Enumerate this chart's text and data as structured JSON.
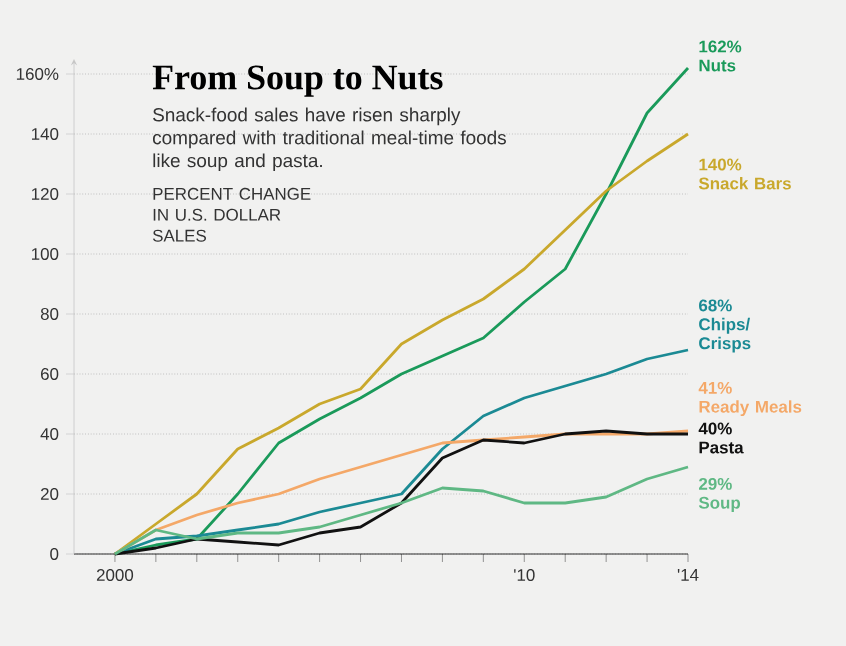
{
  "chart_data": {
    "type": "line",
    "title": "From Soup to Nuts",
    "subtitle": "Snack-food sales have risen sharply compared with traditional meal-time foods like soup and pasta.",
    "ylabel": "PERCENT CHANGE IN U.S. DOLLAR SALES",
    "x": [
      2000,
      2001,
      2002,
      2003,
      2004,
      2005,
      2006,
      2007,
      2008,
      2009,
      2010,
      2011,
      2012,
      2013,
      2014
    ],
    "xlim": [
      1999,
      2014
    ],
    "ylim": [
      0,
      165
    ],
    "xticks": [
      {
        "value": 2000,
        "label": "2000"
      },
      {
        "value": 2001,
        "label": null
      },
      {
        "value": 2002,
        "label": null
      },
      {
        "value": 2003,
        "label": null
      },
      {
        "value": 2004,
        "label": null
      },
      {
        "value": 2005,
        "label": null
      },
      {
        "value": 2006,
        "label": null
      },
      {
        "value": 2007,
        "label": null
      },
      {
        "value": 2008,
        "label": null
      },
      {
        "value": 2009,
        "label": null
      },
      {
        "value": 2010,
        "label": "'10"
      },
      {
        "value": 2011,
        "label": null
      },
      {
        "value": 2012,
        "label": null
      },
      {
        "value": 2013,
        "label": null
      },
      {
        "value": 2014,
        "label": "'14"
      }
    ],
    "yticks": [
      0,
      20,
      40,
      60,
      80,
      100,
      120,
      140,
      {
        "value": 160,
        "label": "160%"
      }
    ],
    "grid": "y",
    "series": [
      {
        "name": "Nuts",
        "color": "#1a9a5a",
        "values": [
          0,
          3,
          5,
          20,
          37,
          45,
          52,
          60,
          66,
          72,
          84,
          95,
          120,
          147,
          162
        ],
        "value_labels": [
          null,
          null,
          null,
          null,
          null,
          null,
          null,
          null,
          null,
          null,
          null,
          null,
          null,
          null,
          "162%"
        ]
      },
      {
        "name": "Snack Bars",
        "color": "#c9a82c",
        "values": [
          0,
          10,
          20,
          35,
          42,
          50,
          55,
          70,
          78,
          85,
          95,
          108,
          121,
          131,
          140
        ],
        "value_labels": [
          null,
          null,
          null,
          null,
          null,
          null,
          null,
          null,
          null,
          null,
          null,
          null,
          null,
          null,
          "140%"
        ]
      },
      {
        "name": "Chips/ Crisps",
        "color": "#1b8a94",
        "values": [
          0,
          5,
          6,
          8,
          10,
          14,
          17,
          20,
          35,
          46,
          52,
          56,
          60,
          65,
          68
        ],
        "value_labels": [
          null,
          null,
          null,
          null,
          null,
          null,
          null,
          null,
          null,
          null,
          null,
          null,
          null,
          null,
          "68%"
        ]
      },
      {
        "name": "Ready Meals",
        "color": "#f4a868",
        "values": [
          0,
          8,
          13,
          17,
          20,
          25,
          29,
          33,
          37,
          38,
          39,
          40,
          40,
          40,
          41
        ],
        "value_labels": [
          null,
          null,
          null,
          null,
          null,
          null,
          null,
          null,
          null,
          null,
          null,
          null,
          null,
          null,
          "41%"
        ]
      },
      {
        "name": "Pasta",
        "color": "#111111",
        "values": [
          0,
          2,
          5,
          4,
          3,
          7,
          9,
          17,
          32,
          38,
          37,
          40,
          41,
          40,
          40
        ],
        "value_labels": [
          null,
          null,
          null,
          null,
          null,
          null,
          null,
          null,
          null,
          null,
          null,
          null,
          null,
          null,
          "40%"
        ]
      },
      {
        "name": "Soup",
        "color": "#5fb884",
        "values": [
          0,
          8,
          5,
          7,
          7,
          9,
          13,
          17,
          22,
          21,
          17,
          17,
          19,
          25,
          29
        ],
        "value_labels": [
          null,
          null,
          null,
          null,
          null,
          null,
          null,
          null,
          null,
          null,
          null,
          null,
          null,
          null,
          "29%"
        ]
      }
    ]
  }
}
